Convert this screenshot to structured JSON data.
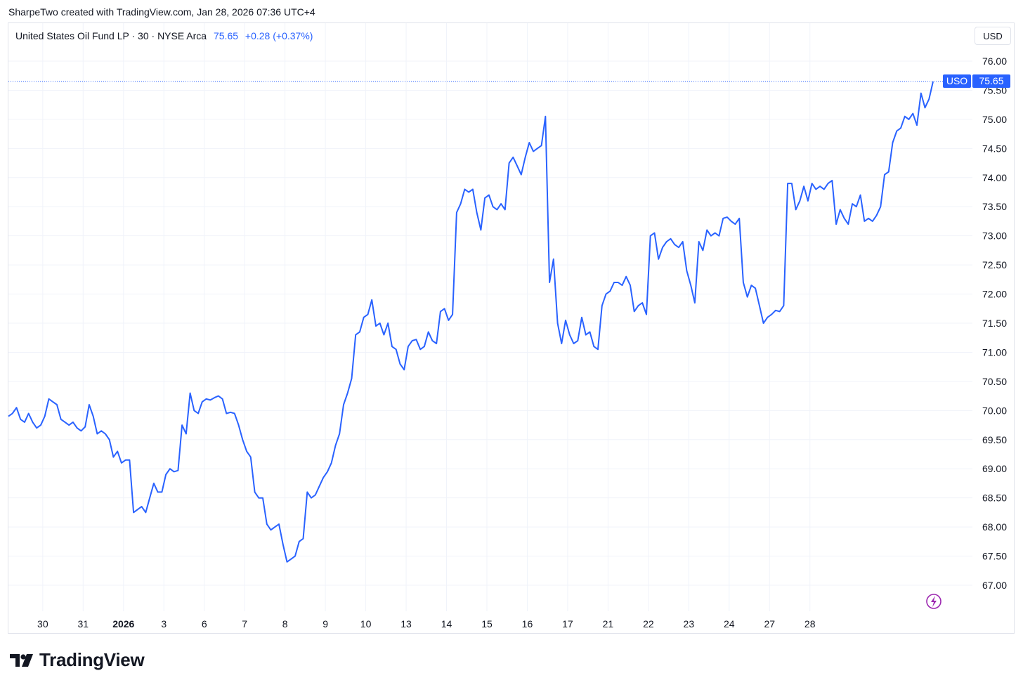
{
  "caption": "SharpeTwo created with TradingView.com, Jan 28, 2026 07:36 UTC+4",
  "legend": {
    "symbol_line": "United States Oil Fund LP · 30 · NYSE Arca",
    "price": "75.65",
    "change": "+0.28 (+0.37%)"
  },
  "currency_button": "USD",
  "price_badge": {
    "ticker": "USO",
    "price": "75.65"
  },
  "brand": "TradingView",
  "colors": {
    "line": "#2962ff",
    "grid": "#f0f3fa",
    "text": "#131722",
    "flash_icon": "#9c27b0"
  },
  "icons": [
    "tradingview-logo-icon",
    "lightning-icon"
  ],
  "chart_data": {
    "type": "line",
    "title": "United States Oil Fund LP · 30 · NYSE Arca",
    "ylim": [
      66.5,
      76.3
    ],
    "grid": true,
    "y_ticks": [
      "76.00",
      "75.50",
      "75.00",
      "74.50",
      "74.00",
      "73.50",
      "73.00",
      "72.50",
      "72.00",
      "71.50",
      "71.00",
      "70.50",
      "70.00",
      "69.50",
      "69.00",
      "68.50",
      "68.00",
      "67.50",
      "67.00"
    ],
    "x_ticks": [
      {
        "label": "30",
        "i": 8.5
      },
      {
        "label": "31",
        "i": 18.5
      },
      {
        "label": "2026",
        "i": 28.5,
        "bold": true
      },
      {
        "label": "3",
        "i": 38.5
      },
      {
        "label": "6",
        "i": 48.5
      },
      {
        "label": "7",
        "i": 58.5
      },
      {
        "label": "8",
        "i": 68.5
      },
      {
        "label": "9",
        "i": 78.5
      },
      {
        "label": "10",
        "i": 88.5
      },
      {
        "label": "13",
        "i": 98.5
      },
      {
        "label": "14",
        "i": 108.5
      },
      {
        "label": "15",
        "i": 118.5
      },
      {
        "label": "16",
        "i": 128.5
      },
      {
        "label": "17",
        "i": 138.5
      },
      {
        "label": "21",
        "i": 148.5
      },
      {
        "label": "22",
        "i": 158.5
      },
      {
        "label": "23",
        "i": 168.5
      },
      {
        "label": "24",
        "i": 178.5
      },
      {
        "label": "27",
        "i": 188.5
      },
      {
        "label": "28",
        "i": 198.5
      }
    ],
    "series": [
      {
        "values": [
          69.9,
          69.95,
          70.05,
          69.85,
          69.8,
          69.95,
          69.8,
          69.7,
          69.75,
          69.9,
          70.2,
          70.15,
          70.1,
          69.85,
          69.8,
          69.75,
          69.8,
          69.7,
          69.65,
          69.72,
          70.1,
          69.9,
          69.6,
          69.65,
          69.6,
          69.5,
          69.2,
          69.3,
          69.1,
          69.15,
          69.15,
          68.25,
          68.3,
          68.35,
          68.25,
          68.5,
          68.75,
          68.6,
          68.6,
          68.9,
          69.0,
          68.95,
          68.97,
          69.75,
          69.6,
          70.3,
          70.0,
          69.95,
          70.15,
          70.2,
          70.18,
          70.22,
          70.25,
          70.2,
          69.95,
          69.97,
          69.95,
          69.75,
          69.5,
          69.3,
          69.2,
          68.6,
          68.5,
          68.5,
          68.05,
          67.95,
          68.0,
          68.05,
          67.7,
          67.4,
          67.45,
          67.5,
          67.75,
          67.8,
          68.6,
          68.5,
          68.55,
          68.7,
          68.85,
          68.95,
          69.1,
          69.4,
          69.6,
          70.1,
          70.3,
          70.55,
          71.3,
          71.35,
          71.6,
          71.65,
          71.9,
          71.45,
          71.5,
          71.3,
          71.5,
          71.1,
          71.05,
          70.8,
          70.7,
          71.1,
          71.2,
          71.22,
          71.05,
          71.1,
          71.35,
          71.2,
          71.15,
          71.7,
          71.75,
          71.55,
          71.65,
          73.4,
          73.55,
          73.8,
          73.75,
          73.8,
          73.4,
          73.1,
          73.65,
          73.7,
          73.5,
          73.45,
          73.55,
          73.45,
          74.25,
          74.35,
          74.2,
          74.05,
          74.35,
          74.6,
          74.45,
          74.5,
          74.55,
          75.05,
          72.2,
          72.6,
          71.5,
          71.15,
          71.55,
          71.3,
          71.15,
          71.2,
          71.6,
          71.3,
          71.35,
          71.1,
          71.05,
          71.8,
          72.0,
          72.05,
          72.2,
          72.2,
          72.15,
          72.3,
          72.15,
          71.7,
          71.8,
          71.85,
          71.65,
          73.0,
          73.05,
          72.6,
          72.8,
          72.9,
          72.95,
          72.85,
          72.8,
          72.9,
          72.4,
          72.15,
          71.85,
          72.9,
          72.75,
          73.1,
          73.0,
          73.05,
          73.0,
          73.3,
          73.32,
          73.25,
          73.2,
          73.3,
          72.2,
          71.95,
          72.15,
          72.1,
          71.8,
          71.5,
          71.6,
          71.65,
          71.72,
          71.7,
          71.8,
          73.9,
          73.9,
          73.45,
          73.6,
          73.85,
          73.6,
          73.9,
          73.8,
          73.85,
          73.8,
          73.9,
          73.95,
          73.2,
          73.45,
          73.3,
          73.2,
          73.55,
          73.5,
          73.7,
          73.25,
          73.3,
          73.25,
          73.35,
          73.5,
          74.05,
          74.1,
          74.6,
          74.8,
          74.85,
          75.05,
          75.0,
          75.1,
          74.9,
          75.45,
          75.2,
          75.35,
          75.65
        ]
      }
    ]
  }
}
